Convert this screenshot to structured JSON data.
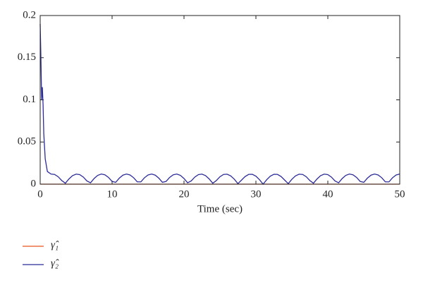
{
  "chart_data": {
    "type": "line",
    "xlabel": "Time (sec)",
    "xlim": [
      0,
      50
    ],
    "xticks": [
      0,
      10,
      20,
      30,
      40,
      50
    ],
    "ylim": [
      0,
      0.2
    ],
    "yticks": [
      0,
      0.05,
      0.1,
      0.15,
      0.2
    ],
    "grid": false,
    "legend": "below",
    "series": [
      {
        "name": "γ̂₁",
        "color": "#e8541e",
        "x": [
          0,
          50
        ],
        "values": [
          0,
          0
        ]
      },
      {
        "name": "γ̂₂",
        "color": "#2b2b9a",
        "x": [
          0,
          0.1,
          0.2,
          0.3,
          0.4,
          0.5,
          0.7,
          1,
          1.5,
          2,
          2.5,
          3,
          3.5,
          4,
          4.5,
          5,
          5.5,
          6,
          6.5,
          7,
          7.5,
          8,
          8.5,
          9,
          9.5,
          10,
          10.5,
          11,
          11.5,
          12,
          12.5,
          13,
          13.5,
          14,
          14.5,
          15,
          15.5,
          16,
          16.5,
          17,
          17.5,
          18,
          18.5,
          19,
          19.5,
          20,
          20.5,
          21,
          21.5,
          22,
          22.5,
          23,
          23.5,
          24,
          24.5,
          25,
          25.5,
          26,
          26.5,
          27,
          27.5,
          28,
          28.5,
          29,
          29.5,
          30,
          30.5,
          31,
          31.5,
          32,
          32.5,
          33,
          33.5,
          34,
          34.5,
          35,
          35.5,
          36,
          36.5,
          37,
          37.5,
          38,
          38.5,
          39,
          39.5,
          40,
          40.5,
          41,
          41.5,
          42,
          42.5,
          43,
          43.5,
          44,
          44.5,
          45,
          45.5,
          46,
          46.5,
          47,
          47.5,
          48,
          48.5,
          49,
          49.5,
          50
        ],
        "values": [
          0.19,
          0.15,
          0.1,
          0.115,
          0.095,
          0.06,
          0.03,
          0.015,
          0.012,
          0.0115,
          0.0088,
          0.0043,
          0.0011,
          0.0062,
          0.0101,
          0.0119,
          0.0113,
          0.0084,
          0.0038,
          0.0016,
          0.0067,
          0.0104,
          0.012,
          0.0111,
          0.008,
          0.0032,
          0.0022,
          0.0071,
          0.0107,
          0.012,
          0.0109,
          0.0076,
          0.0027,
          0.0027,
          0.0076,
          0.0109,
          0.012,
          0.0107,
          0.0071,
          0.0022,
          0.0032,
          0.008,
          0.0111,
          0.012,
          0.0104,
          0.0067,
          0.0016,
          0.0038,
          0.0084,
          0.0113,
          0.0119,
          0.0101,
          0.0062,
          0.0011,
          0.0043,
          0.0088,
          0.0115,
          0.0118,
          0.0098,
          0.0058,
          0.0006,
          0.0048,
          0.0091,
          0.0116,
          0.0117,
          0.0095,
          0.0053,
          0,
          0.0053,
          0.0095,
          0.0117,
          0.0116,
          0.0091,
          0.0048,
          0.0006,
          0.0058,
          0.0098,
          0.0118,
          0.0115,
          0.0088,
          0.0043,
          0.0011,
          0.0062,
          0.0101,
          0.0119,
          0.0113,
          0.0084,
          0.0038,
          0.0016,
          0.0067,
          0.0104,
          0.012,
          0.0111,
          0.008,
          0.0032,
          0.0022,
          0.0071,
          0.0107,
          0.012,
          0.0109,
          0.0076,
          0.0027,
          0.0027,
          0.0076,
          0.0109,
          0.012
        ]
      }
    ]
  }
}
